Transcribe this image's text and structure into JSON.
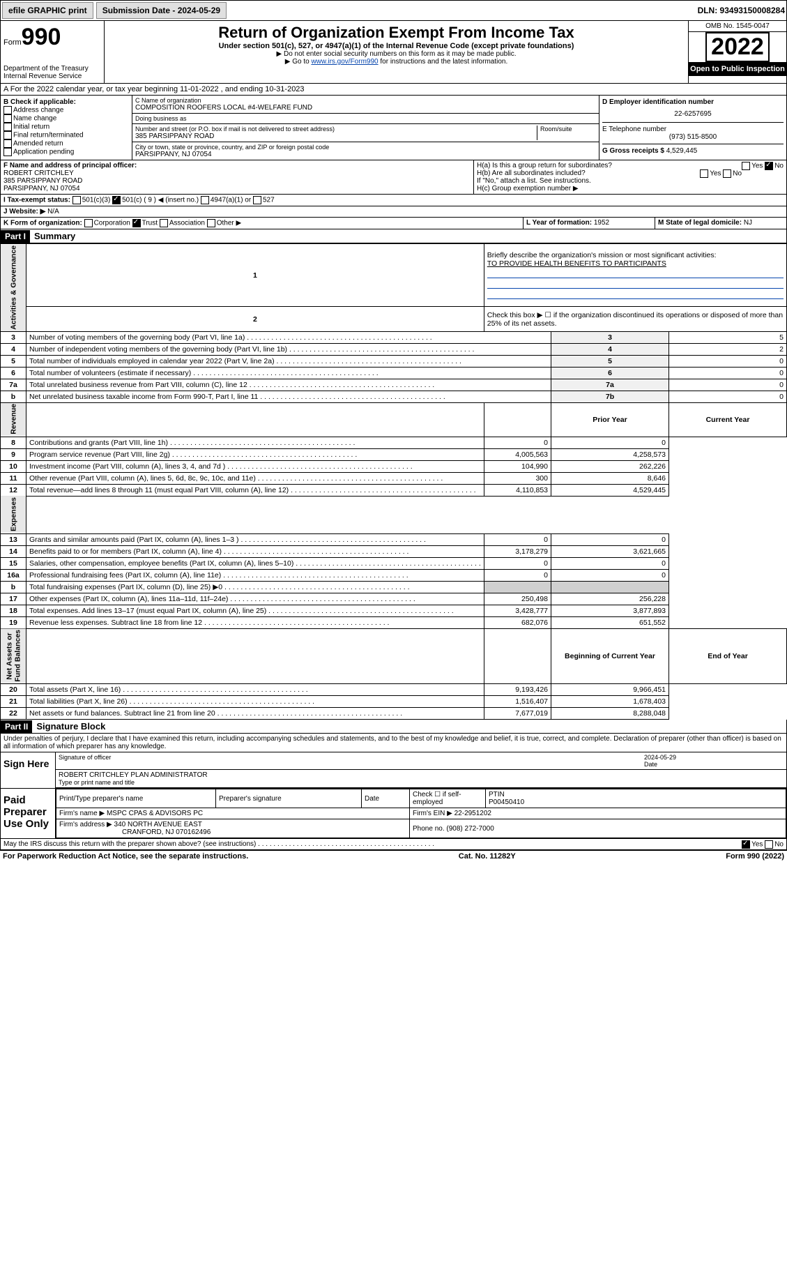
{
  "topbar": {
    "efile": "efile GRAPHIC print",
    "subdate_lbl": "Submission Date - 2024-05-29",
    "dln_lbl": "DLN: 93493150008284"
  },
  "hdr": {
    "form_prefix": "Form",
    "form_num": "990",
    "dept": "Department of the Treasury\nInternal Revenue Service",
    "title": "Return of Organization Exempt From Income Tax",
    "sub": "Under section 501(c), 527, or 4947(a)(1) of the Internal Revenue Code (except private foundations)",
    "note1": "▶ Do not enter social security numbers on this form as it may be made public.",
    "note2_pre": "▶ Go to ",
    "note2_link": "www.irs.gov/Form990",
    "note2_post": " for instructions and the latest information.",
    "omb": "OMB No. 1545-0047",
    "year": "2022",
    "inspect": "Open to Public Inspection"
  },
  "secA": {
    "text": "A For the 2022 calendar year, or tax year beginning 11-01-2022    , and ending 10-31-2023"
  },
  "secB": {
    "hdr": "B Check if applicable:",
    "items": [
      "Address change",
      "Name change",
      "Initial return",
      "Final return/terminated",
      "Amended return",
      "Application pending"
    ]
  },
  "secC": {
    "name_lbl": "C Name of organization",
    "name": "COMPOSITION ROOFERS LOCAL #4-WELFARE FUND",
    "dba_lbl": "Doing business as",
    "dba": "",
    "street_lbl": "Number and street (or P.O. box if mail is not delivered to street address)",
    "room_lbl": "Room/suite",
    "street": "385 PARSIPPANY ROAD",
    "city_lbl": "City or town, state or province, country, and ZIP or foreign postal code",
    "city": "PARSIPPANY, NJ  07054"
  },
  "secD": {
    "lbl": "D Employer identification number",
    "val": "22-6257695"
  },
  "secE": {
    "lbl": "E Telephone number",
    "val": "(973) 515-8500"
  },
  "secG": {
    "lbl": "G Gross receipts $ ",
    "val": "4,529,445"
  },
  "secF": {
    "lbl": "F Name and address of principal officer:",
    "name": "ROBERT CRITCHLEY",
    "addr1": "385 PARSIPPANY ROAD",
    "addr2": "PARSIPPANY, NJ  07054"
  },
  "secH": {
    "ha": "H(a)  Is this a group return for subordinates?",
    "ha_yes": "Yes",
    "ha_no": "No",
    "hb": "H(b)  Are all subordinates included?",
    "hb_yes": "Yes",
    "hb_no": "No",
    "hb_note": "If \"No,\" attach a list. See instructions.",
    "hc": "H(c)  Group exemption number ▶"
  },
  "secI": {
    "lbl": "I   Tax-exempt status:",
    "o1": "501(c)(3)",
    "o2": "501(c) ( 9 ) ◀ (insert no.)",
    "o3": "4947(a)(1) or",
    "o4": "527"
  },
  "secJ": {
    "lbl": "J   Website: ▶ ",
    "val": "N/A"
  },
  "secK": {
    "lbl": "K Form of organization:",
    "o1": "Corporation",
    "o2": "Trust",
    "o3": "Association",
    "o4": "Other ▶"
  },
  "secL": {
    "lbl": "L Year of formation: ",
    "val": "1952"
  },
  "secM": {
    "lbl": "M State of legal domicile: ",
    "val": "NJ"
  },
  "part1": {
    "hdr": "Part I",
    "title": "Summary",
    "l1": "Briefly describe the organization's mission or most significant activities:",
    "l1v": "TO PROVIDE HEALTH BENEFITS TO PARTICIPANTS",
    "l2": "Check this box ▶ ☐  if the organization discontinued its operations or disposed of more than 25% of its net assets.",
    "side_ag": "Activities & Governance",
    "side_rev": "Revenue",
    "side_exp": "Expenses",
    "side_na": "Net Assets or\nFund Balances",
    "rows_ag": [
      {
        "n": "3",
        "t": "Number of voting members of the governing body (Part VI, line 1a)",
        "box": "3",
        "v": "5"
      },
      {
        "n": "4",
        "t": "Number of independent voting members of the governing body (Part VI, line 1b)",
        "box": "4",
        "v": "2"
      },
      {
        "n": "5",
        "t": "Total number of individuals employed in calendar year 2022 (Part V, line 2a)",
        "box": "5",
        "v": "0"
      },
      {
        "n": "6",
        "t": "Total number of volunteers (estimate if necessary)",
        "box": "6",
        "v": "0"
      },
      {
        "n": "7a",
        "t": "Total unrelated business revenue from Part VIII, column (C), line 12",
        "box": "7a",
        "v": "0"
      },
      {
        "n": "b",
        "t": "Net unrelated business taxable income from Form 990-T, Part I, line 11",
        "box": "7b",
        "v": "0"
      }
    ],
    "col_py": "Prior Year",
    "col_cy": "Current Year",
    "rows_rev": [
      {
        "n": "8",
        "t": "Contributions and grants (Part VIII, line 1h)",
        "py": "0",
        "cy": "0"
      },
      {
        "n": "9",
        "t": "Program service revenue (Part VIII, line 2g)",
        "py": "4,005,563",
        "cy": "4,258,573"
      },
      {
        "n": "10",
        "t": "Investment income (Part VIII, column (A), lines 3, 4, and 7d )",
        "py": "104,990",
        "cy": "262,226"
      },
      {
        "n": "11",
        "t": "Other revenue (Part VIII, column (A), lines 5, 6d, 8c, 9c, 10c, and 11e)",
        "py": "300",
        "cy": "8,646"
      },
      {
        "n": "12",
        "t": "Total revenue—add lines 8 through 11 (must equal Part VIII, column (A), line 12)",
        "py": "4,110,853",
        "cy": "4,529,445"
      }
    ],
    "rows_exp": [
      {
        "n": "13",
        "t": "Grants and similar amounts paid (Part IX, column (A), lines 1–3 )",
        "py": "0",
        "cy": "0"
      },
      {
        "n": "14",
        "t": "Benefits paid to or for members (Part IX, column (A), line 4)",
        "py": "3,178,279",
        "cy": "3,621,665"
      },
      {
        "n": "15",
        "t": "Salaries, other compensation, employee benefits (Part IX, column (A), lines 5–10)",
        "py": "0",
        "cy": "0"
      },
      {
        "n": "16a",
        "t": "Professional fundraising fees (Part IX, column (A), line 11e)",
        "py": "0",
        "cy": "0"
      },
      {
        "n": "b",
        "t": "Total fundraising expenses (Part IX, column (D), line 25) ▶0",
        "py": "",
        "cy": "",
        "grey": true
      },
      {
        "n": "17",
        "t": "Other expenses (Part IX, column (A), lines 11a–11d, 11f–24e)",
        "py": "250,498",
        "cy": "256,228"
      },
      {
        "n": "18",
        "t": "Total expenses. Add lines 13–17 (must equal Part IX, column (A), line 25)",
        "py": "3,428,777",
        "cy": "3,877,893"
      },
      {
        "n": "19",
        "t": "Revenue less expenses. Subtract line 18 from line 12",
        "py": "682,076",
        "cy": "651,552"
      }
    ],
    "col_boy": "Beginning of Current Year",
    "col_eoy": "End of Year",
    "rows_na": [
      {
        "n": "20",
        "t": "Total assets (Part X, line 16)",
        "py": "9,193,426",
        "cy": "9,966,451"
      },
      {
        "n": "21",
        "t": "Total liabilities (Part X, line 26)",
        "py": "1,516,407",
        "cy": "1,678,403"
      },
      {
        "n": "22",
        "t": "Net assets or fund balances. Subtract line 21 from line 20",
        "py": "7,677,019",
        "cy": "8,288,048"
      }
    ]
  },
  "part2": {
    "hdr": "Part II",
    "title": "Signature Block",
    "decl": "Under penalties of perjury, I declare that I have examined this return, including accompanying schedules and statements, and to the best of my knowledge and belief, it is true, correct, and complete. Declaration of preparer (other than officer) is based on all information of which preparer has any knowledge.",
    "sign_here": "Sign Here",
    "sig_officer": "Signature of officer",
    "date_lbl": "Date",
    "sig_date": "2024-05-29",
    "officer_name": "ROBERT CRITCHLEY  PLAN ADMINISTRATOR",
    "type_lbl": "Type or print name and title",
    "paid": "Paid Preparer Use Only",
    "pt_name_lbl": "Print/Type preparer's name",
    "pt_sig_lbl": "Preparer's signature",
    "pt_date_lbl": "Date",
    "pt_check": "Check ☐ if self-employed",
    "ptin_lbl": "PTIN",
    "ptin": "P00450410",
    "firm_name_lbl": "Firm's name     ▶",
    "firm_name": "MSPC CPAS & ADVISORS PC",
    "firm_ein_lbl": "Firm's EIN ▶",
    "firm_ein": "22-2951202",
    "firm_addr_lbl": "Firm's address ▶",
    "firm_addr1": "340 NORTH AVENUE EAST",
    "firm_addr2": "CRANFORD, NJ  070162496",
    "phone_lbl": "Phone no.",
    "phone": "(908) 272-7000",
    "discuss": "May the IRS discuss this return with the preparer shown above? (see instructions)",
    "d_yes": "Yes",
    "d_no": "No"
  },
  "ftr": {
    "l": "For Paperwork Reduction Act Notice, see the separate instructions.",
    "m": "Cat. No. 11282Y",
    "r": "Form 990 (2022)"
  }
}
